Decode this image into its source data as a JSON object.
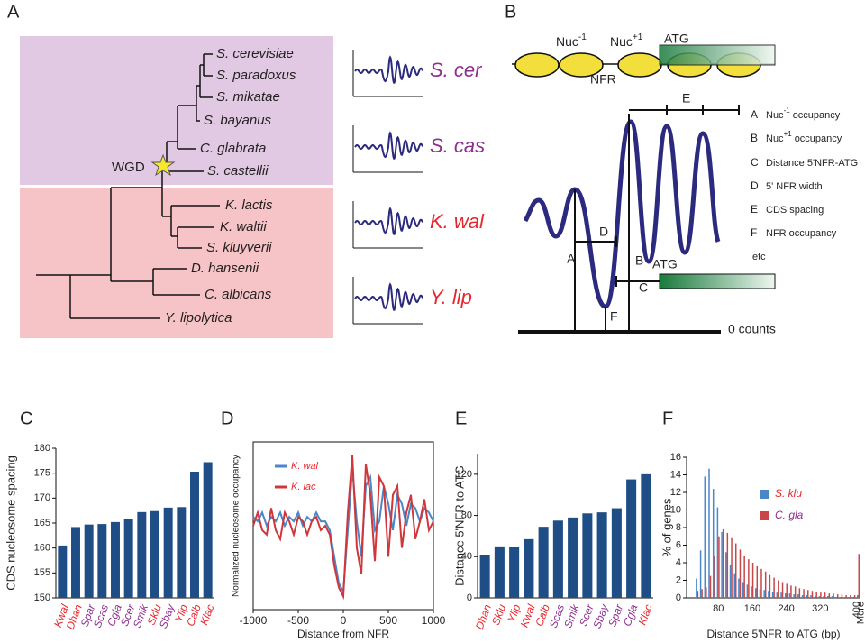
{
  "panel_a": {
    "label": "A",
    "leaves": [
      "S. cerevisiae",
      "S. paradoxus",
      "S. mikatae",
      "S. bayanus",
      "C. glabrata",
      "S. castellii",
      "K. lactis",
      "K. waltii",
      "S. kluyverii",
      "D. hansenii",
      "C. albicans",
      "Y. lipolytica"
    ],
    "wgd": "WGD",
    "profiles": [
      {
        "name": "S. cer",
        "color": "#8e2f91"
      },
      {
        "name": "S. cas",
        "color": "#8e2f91"
      },
      {
        "name": "K. wal",
        "color": "#e8262d"
      },
      {
        "name": "Y. lip",
        "color": "#e8262d"
      }
    ]
  },
  "panel_b": {
    "label": "B",
    "nuc_minus": {
      "text": "Nuc",
      "sup": "-1"
    },
    "nuc_plus": {
      "text": "Nuc",
      "sup": "+1"
    },
    "atg": "ATG",
    "nfr": "NFR",
    "markers": [
      "A",
      "B",
      "C",
      "D",
      "E",
      "F"
    ],
    "atg_bar": "ATG",
    "baseline": "0 counts",
    "legend": [
      {
        "key": "A",
        "pre": "Nuc",
        "sup": "-1",
        "post": "occupancy"
      },
      {
        "key": "B",
        "pre": "Nuc",
        "sup": "+1",
        "post": "occupancy"
      },
      {
        "key": "C",
        "text": "Distance 5'NFR-ATG"
      },
      {
        "key": "D",
        "text": "5' NFR width"
      },
      {
        "key": "E",
        "text": "CDS spacing"
      },
      {
        "key": "F",
        "text": "NFR occupancy"
      }
    ],
    "etc": "etc"
  },
  "chart_data": [
    {
      "panel": "C",
      "type": "bar",
      "ylabel": "CDS nucleosome spacing",
      "categories": [
        "Kwal",
        "Dhan",
        "Spar",
        "Scas",
        "Cgla",
        "Scer",
        "Smik",
        "Sklu",
        "Sbay",
        "Ylip",
        "Calb",
        "Klac"
      ],
      "category_colors": [
        "#e8262d",
        "#e8262d",
        "#8e2f91",
        "#8e2f91",
        "#8e2f91",
        "#8e2f91",
        "#8e2f91",
        "#e8262d",
        "#8e2f91",
        "#e8262d",
        "#e8262d",
        "#e8262d"
      ],
      "values": [
        160.5,
        164.2,
        164.7,
        164.8,
        165.2,
        165.8,
        167.2,
        167.4,
        168.1,
        168.2,
        175.3,
        177.2
      ],
      "color": "#1f4e87",
      "ylim": [
        150,
        180
      ],
      "yticks": [
        150,
        155,
        160,
        165,
        170,
        175,
        180
      ]
    },
    {
      "panel": "D",
      "type": "line",
      "xlabel": "Distance from NFR",
      "ylabel": "Normalized nucleosome occupancy",
      "x": [
        -1000,
        -950,
        -900,
        -850,
        -800,
        -750,
        -700,
        -650,
        -600,
        -550,
        -500,
        -450,
        -400,
        -350,
        -300,
        -250,
        -200,
        -150,
        -100,
        -50,
        0,
        50,
        100,
        150,
        200,
        250,
        300,
        350,
        400,
        450,
        500,
        550,
        600,
        650,
        700,
        750,
        800,
        850,
        900,
        950,
        1000
      ],
      "series": [
        {
          "name": "K. wal",
          "color": "#4a86c8",
          "values": [
            1.05,
            1.0,
            1.1,
            0.95,
            1.05,
            1.0,
            1.1,
            0.95,
            1.05,
            1.0,
            1.1,
            0.95,
            1.05,
            1.0,
            1.1,
            1.0,
            1.0,
            0.9,
            0.6,
            0.3,
            0.2,
            0.9,
            1.6,
            1.0,
            0.6,
            1.4,
            1.5,
            0.9,
            1.0,
            1.4,
            1.2,
            0.9,
            1.3,
            1.2,
            0.95,
            1.2,
            1.15,
            1.0,
            1.15,
            1.1,
            1.0
          ]
        },
        {
          "name": "K. lac",
          "color": "#d0363a",
          "values": [
            0.95,
            1.1,
            0.9,
            0.85,
            1.15,
            0.9,
            0.8,
            1.1,
            1.0,
            0.85,
            1.05,
            1.0,
            0.85,
            1.0,
            1.05,
            0.9,
            0.95,
            0.85,
            0.5,
            0.25,
            0.15,
            1.1,
            1.75,
            0.7,
            0.4,
            1.65,
            1.3,
            0.55,
            1.5,
            1.4,
            0.6,
            1.3,
            1.4,
            0.7,
            1.1,
            1.3,
            0.8,
            1.0,
            1.25,
            0.9,
            1.0
          ]
        }
      ],
      "legend_color": "#e8262d",
      "xlim": [
        -1000,
        1000
      ],
      "xticks": [
        -1000,
        -500,
        0,
        500,
        1000
      ],
      "ylim": [
        0,
        1.9
      ]
    },
    {
      "panel": "E",
      "type": "bar",
      "ylabel": "Distance 5'NFR to ATG",
      "categories": [
        "Dhan",
        "Sklu",
        "Ylip",
        "Kwal",
        "Calb",
        "Scas",
        "Smik",
        "Scer",
        "Sbay",
        "Spar",
        "Cgla",
        "Klac"
      ],
      "category_colors": [
        "#e8262d",
        "#e8262d",
        "#e8262d",
        "#e8262d",
        "#e8262d",
        "#8e2f91",
        "#8e2f91",
        "#8e2f91",
        "#8e2f91",
        "#8e2f91",
        "#8e2f91",
        "#e8262d"
      ],
      "values": [
        42,
        50,
        49,
        57,
        69,
        75,
        78,
        82,
        83,
        87,
        115,
        120
      ],
      "color": "#1f4e87",
      "ylim": [
        0,
        140
      ],
      "yticks": [
        0,
        40,
        80,
        120
      ]
    },
    {
      "panel": "F",
      "type": "bar",
      "xlabel": "Distance 5'NFR to ATG (bp)",
      "ylabel": "% of genes",
      "categories": [
        null,
        null,
        null,
        null,
        null,
        null,
        null,
        "80",
        null,
        null,
        null,
        null,
        null,
        null,
        null,
        "160",
        null,
        null,
        null,
        null,
        null,
        null,
        null,
        "240",
        null,
        null,
        null,
        null,
        null,
        null,
        null,
        "320",
        null,
        null,
        null,
        null,
        null,
        null,
        null,
        "400",
        "More"
      ],
      "series": [
        {
          "name": "S. klu",
          "color": "#4a86c8",
          "label_color": "#e8262d",
          "values": [
            0,
            0,
            2.2,
            5.4,
            13.8,
            14.7,
            12.4,
            10.3,
            7.5,
            5.2,
            3.8,
            2.8,
            2.2,
            1.8,
            1.5,
            1.3,
            1.1,
            1.0,
            0.9,
            0.8,
            0.7,
            0.6,
            0.6,
            0.5,
            0.5,
            0.4,
            0.4,
            0.3,
            0.3,
            0.3,
            0.2,
            0.2,
            0.2,
            0.2,
            0.2,
            0.1,
            0.1,
            0.1,
            0.1,
            0.1,
            0.3
          ]
        },
        {
          "name": "C. gla",
          "color": "#c8484a",
          "label_color": "#8e2f91",
          "values": [
            0,
            0,
            0.8,
            1.0,
            1.2,
            2.5,
            4.8,
            7.0,
            7.8,
            7.4,
            6.8,
            6.2,
            5.5,
            4.8,
            4.4,
            4.0,
            3.6,
            3.3,
            3.0,
            2.6,
            2.3,
            2.0,
            1.8,
            1.6,
            1.4,
            1.3,
            1.1,
            1.0,
            0.9,
            0.8,
            0.7,
            0.6,
            0.6,
            0.5,
            0.5,
            0.4,
            0.4,
            0.3,
            0.3,
            0.3,
            5.0
          ]
        }
      ],
      "ylim": [
        0,
        16
      ],
      "yticks": [
        0,
        2,
        4,
        6,
        8,
        10,
        12,
        14,
        16
      ]
    }
  ]
}
